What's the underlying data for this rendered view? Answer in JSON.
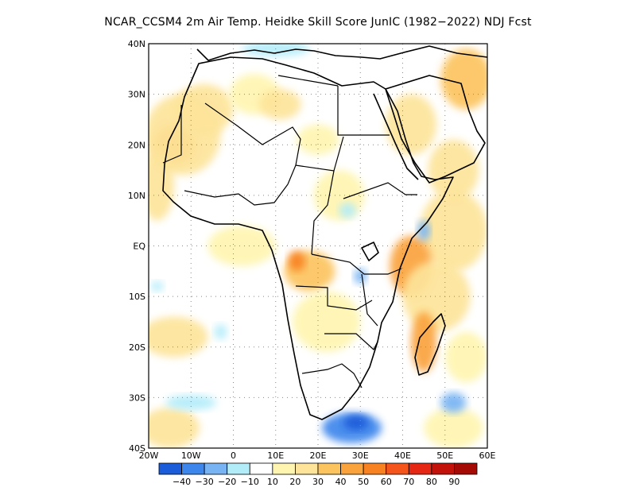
{
  "title": "NCAR_CCSM4  2m Air Temp. Heidke Skill Score JunIC (1982−2022) NDJ Fcst",
  "map": {
    "lon_range": [
      -20,
      60
    ],
    "lat_range": [
      -40,
      40
    ],
    "lon_ticks": [
      {
        "value": -20,
        "label": "20W"
      },
      {
        "value": -10,
        "label": "10W"
      },
      {
        "value": 0,
        "label": "0"
      },
      {
        "value": 10,
        "label": "10E"
      },
      {
        "value": 20,
        "label": "20E"
      },
      {
        "value": 30,
        "label": "30E"
      },
      {
        "value": 40,
        "label": "40E"
      },
      {
        "value": 50,
        "label": "50E"
      },
      {
        "value": 60,
        "label": "60E"
      }
    ],
    "lat_ticks": [
      {
        "value": 40,
        "label": "40N"
      },
      {
        "value": 30,
        "label": "30N"
      },
      {
        "value": 20,
        "label": "20N"
      },
      {
        "value": 10,
        "label": "10N"
      },
      {
        "value": 0,
        "label": "EQ"
      },
      {
        "value": -10,
        "label": "10S"
      },
      {
        "value": -20,
        "label": "20S"
      },
      {
        "value": -30,
        "label": "30S"
      },
      {
        "value": -40,
        "label": "40S"
      }
    ]
  },
  "colorbar": {
    "colors": [
      "#1a5cd9",
      "#3d86ec",
      "#78b4f3",
      "#b2ecf9",
      "#ffffff",
      "#fff5b0",
      "#fde49a",
      "#fcc45f",
      "#faa33c",
      "#f88222",
      "#f5541a",
      "#e52713",
      "#c21209",
      "#a50a05"
    ],
    "labels": [
      "−40",
      "−30",
      "−20",
      "−10",
      "10",
      "20",
      "30",
      "40",
      "50",
      "60",
      "70",
      "80",
      "90"
    ]
  },
  "regions": [
    {
      "lon": -14,
      "lat": 20,
      "rx": 5,
      "ry": 4,
      "value": 40
    },
    {
      "lon": -12,
      "lat": 22,
      "rx": 9,
      "ry": 8,
      "value": 20
    },
    {
      "lon": -18,
      "lat": 12,
      "rx": 4,
      "ry": 7,
      "value": 20
    },
    {
      "lon": -7,
      "lat": 27,
      "rx": 7,
      "ry": 5,
      "value": 20
    },
    {
      "lon": 5,
      "lat": 30,
      "rx": 6,
      "ry": 4,
      "value": 10
    },
    {
      "lon": 11,
      "lat": 28,
      "rx": 5,
      "ry": 3,
      "value": 20
    },
    {
      "lon": 20,
      "lat": 21,
      "rx": 5,
      "ry": 3,
      "value": 10
    },
    {
      "lon": 42,
      "lat": 24,
      "rx": 6,
      "ry": 6,
      "value": 20
    },
    {
      "lon": 55,
      "lat": 33,
      "rx": 6,
      "ry": 6,
      "value": 30
    },
    {
      "lon": 52,
      "lat": 15,
      "rx": 6,
      "ry": 6,
      "value": 20
    },
    {
      "lon": 52,
      "lat": 3,
      "rx": 8,
      "ry": 8,
      "value": 20
    },
    {
      "lon": 42,
      "lat": -4,
      "rx": 5,
      "ry": 6,
      "value": 40
    },
    {
      "lon": 48,
      "lat": -10,
      "rx": 8,
      "ry": 7,
      "value": 20
    },
    {
      "lon": 45,
      "lat": -19,
      "rx": 3,
      "ry": 6,
      "value": 40
    },
    {
      "lon": 55,
      "lat": -22,
      "rx": 5,
      "ry": 5,
      "value": 10
    },
    {
      "lon": 18,
      "lat": -5,
      "rx": 6,
      "ry": 4,
      "value": 30
    },
    {
      "lon": 15,
      "lat": -3,
      "rx": 2,
      "ry": 2,
      "value": 50
    },
    {
      "lon": 22,
      "lat": -15,
      "rx": 8,
      "ry": 6,
      "value": 10
    },
    {
      "lon": 25,
      "lat": 10,
      "rx": 6,
      "ry": 5,
      "value": 10
    },
    {
      "lon": -14,
      "lat": -18,
      "rx": 8,
      "ry": 4,
      "value": 20
    },
    {
      "lon": -15,
      "lat": -36,
      "rx": 7,
      "ry": 4,
      "value": 20
    },
    {
      "lon": 2,
      "lat": 0,
      "rx": 8,
      "ry": 4,
      "value": 10
    },
    {
      "lon": 52,
      "lat": -36,
      "rx": 7,
      "ry": 4,
      "value": 10
    },
    {
      "lon": 28,
      "lat": -36,
      "rx": 7,
      "ry": 3,
      "value": -30
    },
    {
      "lon": 29,
      "lat": -35,
      "rx": 3,
      "ry": 1.5,
      "value": -40
    },
    {
      "lon": -10,
      "lat": -31,
      "rx": 6,
      "ry": 1.5,
      "value": -10
    },
    {
      "lon": 52,
      "lat": -31,
      "rx": 3,
      "ry": 2,
      "value": -20
    },
    {
      "lon": 45,
      "lat": 3,
      "rx": 1.5,
      "ry": 2,
      "value": -20
    },
    {
      "lon": 30,
      "lat": -6,
      "rx": 1.5,
      "ry": 1.5,
      "value": -20
    },
    {
      "lon": 10,
      "lat": 39,
      "rx": 8,
      "ry": 1.5,
      "value": -10
    },
    {
      "lon": 27,
      "lat": 7,
      "rx": 2,
      "ry": 1.5,
      "value": -10
    },
    {
      "lon": -3,
      "lat": -17,
      "rx": 1.5,
      "ry": 1.5,
      "value": -10
    },
    {
      "lon": -18,
      "lat": -8,
      "rx": 1.5,
      "ry": 1,
      "value": -10
    }
  ]
}
